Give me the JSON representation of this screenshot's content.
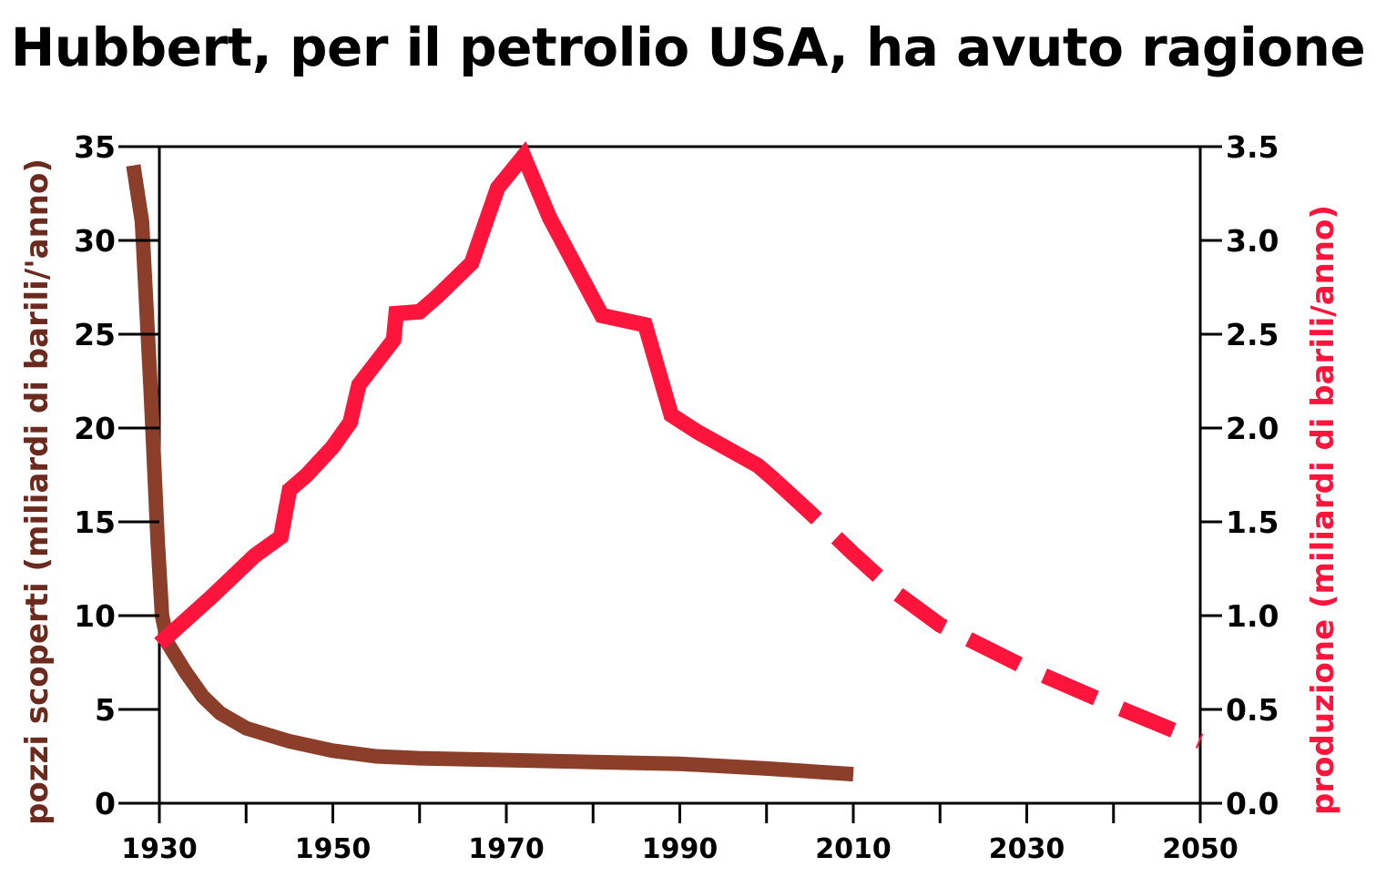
{
  "chart_data": {
    "type": "line",
    "title": "Hubbert, per il petrolio USA, ha avuto ragione",
    "ylabel_left": "pozzi scoperti (miliardi di barili/'anno)",
    "ylabel_right": "produzione (miliardi di barili/anno)",
    "xlim": [
      1930,
      2050
    ],
    "ylim_left": [
      0,
      35
    ],
    "ylim_right": [
      0,
      3.5
    ],
    "x_ticks": [
      1930,
      1940,
      1950,
      1960,
      1970,
      1980,
      1990,
      2000,
      2010,
      2020,
      2030,
      2040,
      2050
    ],
    "x_tick_labels": [
      "1930",
      "1950",
      "1970",
      "1990",
      "2010",
      "2030",
      "2050"
    ],
    "x_tick_label_values": [
      1930,
      1950,
      1970,
      1990,
      2010,
      2030,
      2050
    ],
    "y_left_ticks": [
      0,
      5,
      10,
      15,
      20,
      25,
      30,
      35
    ],
    "y_left_tick_labels": [
      "0",
      "5",
      "10",
      "15",
      "20",
      "25",
      "30",
      "35"
    ],
    "y_right_ticks": [
      0,
      0.5,
      1,
      1.5,
      2,
      2.5,
      3,
      3.5
    ],
    "y_right_tick_labels": [
      "0.0",
      "0.5",
      "1.0",
      "1.5",
      "2.0",
      "2.5",
      "3.0",
      "3.5"
    ],
    "series": [
      {
        "axis": "left",
        "color": "#8b3f2a",
        "style": "solid",
        "points": [
          [
            1927,
            34
          ],
          [
            1928,
            31
          ],
          [
            1929,
            22
          ],
          [
            1929.8,
            14
          ],
          [
            1930.3,
            10
          ],
          [
            1931,
            8.5
          ],
          [
            1933,
            7
          ],
          [
            1935,
            5.7
          ],
          [
            1937,
            4.8
          ],
          [
            1940,
            4
          ],
          [
            1945,
            3.3
          ],
          [
            1950,
            2.8
          ],
          [
            1955,
            2.5
          ],
          [
            1960,
            2.4
          ],
          [
            1970,
            2.3
          ],
          [
            1980,
            2.2
          ],
          [
            1990,
            2.1
          ],
          [
            2000,
            1.85
          ],
          [
            2010,
            1.55
          ]
        ]
      },
      {
        "axis": "right",
        "color": "#ff143c",
        "style": "solid",
        "points": [
          [
            1930,
            0.85
          ],
          [
            1936,
            1.1
          ],
          [
            1941,
            1.32
          ],
          [
            1944,
            1.42
          ],
          [
            1945,
            1.67
          ],
          [
            1947,
            1.75
          ],
          [
            1950,
            1.9
          ],
          [
            1952,
            2.03
          ],
          [
            1953,
            2.23
          ],
          [
            1957,
            2.47
          ],
          [
            1957.3,
            2.61
          ],
          [
            1960,
            2.62
          ],
          [
            1962,
            2.7
          ],
          [
            1966,
            2.88
          ],
          [
            1969,
            3.28
          ],
          [
            1972,
            3.45
          ],
          [
            1975,
            3.12
          ],
          [
            1981,
            2.6
          ],
          [
            1986,
            2.55
          ],
          [
            1989,
            2.07
          ],
          [
            1992,
            1.98
          ],
          [
            1999,
            1.8
          ],
          [
            2001,
            1.72
          ]
        ]
      },
      {
        "axis": "right",
        "color": "#ff143c",
        "style": "dashed",
        "points": [
          [
            2001,
            1.72
          ],
          [
            2005,
            1.55
          ],
          [
            2010,
            1.33
          ],
          [
            2015,
            1.12
          ],
          [
            2020,
            0.95
          ],
          [
            2030,
            0.72
          ],
          [
            2040,
            0.52
          ],
          [
            2050,
            0.33
          ]
        ]
      }
    ]
  }
}
